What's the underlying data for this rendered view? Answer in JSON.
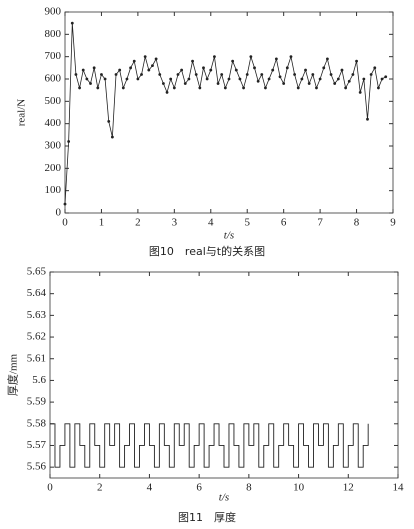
{
  "chart_data": [
    {
      "type": "line",
      "marker": true,
      "ylabel": "real/N",
      "xlabel": "t/s",
      "caption": "图10　real与t的关系图",
      "color": "#222222",
      "x": [
        0,
        0.1,
        0.2,
        0.3,
        0.4,
        0.5,
        0.6,
        0.7,
        0.8,
        0.9,
        1,
        1.1,
        1.2,
        1.3,
        1.4,
        1.5,
        1.6,
        1.7,
        1.8,
        1.9,
        2,
        2.1,
        2.2,
        2.3,
        2.4,
        2.5,
        2.6,
        2.7,
        2.8,
        2.9,
        3,
        3.1,
        3.2,
        3.3,
        3.4,
        3.5,
        3.6,
        3.7,
        3.8,
        3.9,
        4,
        4.1,
        4.2,
        4.3,
        4.4,
        4.5,
        4.6,
        4.7,
        4.8,
        4.9,
        5,
        5.1,
        5.2,
        5.3,
        5.4,
        5.5,
        5.6,
        5.7,
        5.8,
        5.9,
        6,
        6.1,
        6.2,
        6.3,
        6.4,
        6.5,
        6.6,
        6.7,
        6.8,
        6.9,
        7,
        7.1,
        7.2,
        7.3,
        7.4,
        7.5,
        7.6,
        7.7,
        7.8,
        7.9,
        8,
        8.1,
        8.2,
        8.3,
        8.4,
        8.5,
        8.6,
        8.7,
        8.8
      ],
      "values": [
        40,
        320,
        850,
        620,
        560,
        640,
        600,
        580,
        650,
        560,
        620,
        600,
        410,
        340,
        620,
        640,
        560,
        600,
        650,
        680,
        600,
        620,
        700,
        640,
        660,
        690,
        620,
        580,
        540,
        600,
        560,
        620,
        640,
        580,
        600,
        680,
        620,
        560,
        650,
        600,
        640,
        700,
        580,
        620,
        560,
        600,
        680,
        640,
        600,
        560,
        620,
        700,
        650,
        590,
        620,
        560,
        600,
        640,
        690,
        610,
        580,
        650,
        700,
        620,
        560,
        600,
        640,
        580,
        620,
        560,
        600,
        650,
        690,
        620,
        580,
        600,
        640,
        560,
        590,
        620,
        680,
        540,
        600,
        420,
        620,
        650,
        560,
        600,
        610
      ],
      "xlim": [
        0,
        9
      ],
      "xticks": [
        0,
        1,
        2,
        3,
        4,
        5,
        6,
        7,
        8,
        9
      ],
      "ylim": [
        0,
        900
      ],
      "yticks": [
        0,
        100,
        200,
        300,
        400,
        500,
        600,
        700,
        800,
        900
      ]
    },
    {
      "type": "line",
      "step": true,
      "ylabel": "厚度/mm",
      "xlabel": "t/s",
      "caption": "图11　厚度",
      "color": "#222222",
      "x": [
        0,
        0.2,
        0.4,
        0.6,
        0.8,
        1,
        1.2,
        1.4,
        1.6,
        1.8,
        2,
        2.2,
        2.4,
        2.6,
        2.8,
        3,
        3.2,
        3.4,
        3.6,
        3.8,
        4,
        4.2,
        4.4,
        4.6,
        4.8,
        5,
        5.2,
        5.4,
        5.6,
        5.8,
        6,
        6.2,
        6.4,
        6.6,
        6.8,
        7,
        7.2,
        7.4,
        7.6,
        7.8,
        8,
        8.2,
        8.4,
        8.6,
        8.8,
        9,
        9.2,
        9.4,
        9.6,
        9.8,
        10,
        10.2,
        10.4,
        10.6,
        10.8,
        11,
        11.2,
        11.4,
        11.6,
        11.8,
        12,
        12.2,
        12.4,
        12.6,
        12.8
      ],
      "values": [
        5.58,
        5.56,
        5.57,
        5.58,
        5.56,
        5.58,
        5.57,
        5.56,
        5.58,
        5.57,
        5.56,
        5.58,
        5.57,
        5.58,
        5.56,
        5.57,
        5.58,
        5.56,
        5.57,
        5.58,
        5.57,
        5.56,
        5.58,
        5.57,
        5.56,
        5.58,
        5.57,
        5.58,
        5.56,
        5.57,
        5.58,
        5.56,
        5.57,
        5.58,
        5.57,
        5.56,
        5.58,
        5.57,
        5.56,
        5.58,
        5.57,
        5.58,
        5.56,
        5.57,
        5.58,
        5.56,
        5.57,
        5.58,
        5.57,
        5.56,
        5.58,
        5.57,
        5.56,
        5.58,
        5.57,
        5.58,
        5.56,
        5.57,
        5.58,
        5.56,
        5.57,
        5.58,
        5.56,
        5.57,
        5.58
      ],
      "xlim": [
        0,
        14
      ],
      "xticks": [
        0,
        2,
        4,
        6,
        8,
        10,
        12,
        14
      ],
      "ylim": [
        5.555,
        5.65
      ],
      "yticks": [
        5.56,
        5.57,
        5.58,
        5.59,
        5.6,
        5.61,
        5.62,
        5.63,
        5.64,
        5.65
      ]
    }
  ]
}
